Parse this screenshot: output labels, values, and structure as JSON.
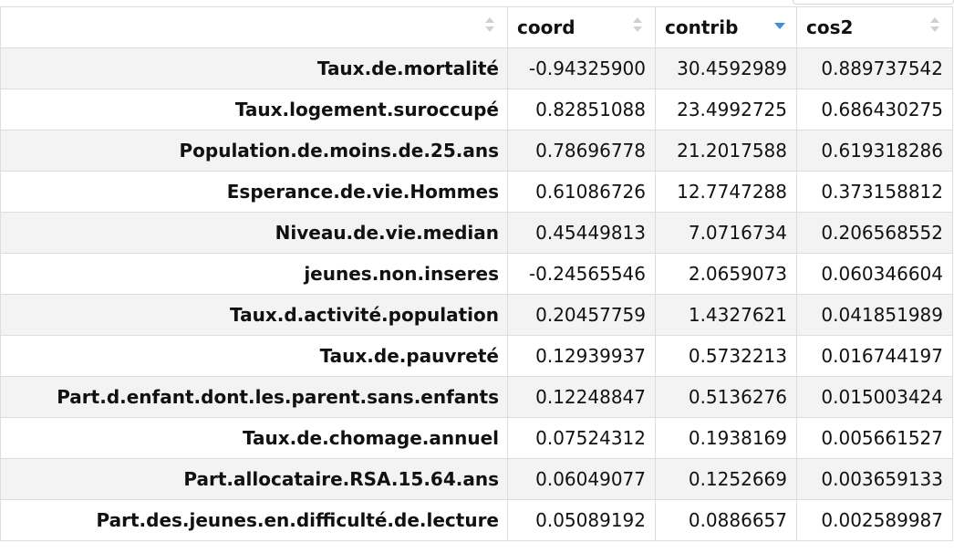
{
  "table": {
    "columns": [
      {
        "label": "",
        "sort": "none"
      },
      {
        "label": "coord",
        "sort": "none"
      },
      {
        "label": "contrib",
        "sort": "descending"
      },
      {
        "label": "cos2",
        "sort": "none"
      }
    ],
    "rows": [
      {
        "name": "Taux.de.mortalité",
        "coord": "-0.94325900",
        "contrib": "30.4592989",
        "cos2": "0.889737542"
      },
      {
        "name": "Taux.logement.suroccupé",
        "coord": "0.82851088",
        "contrib": "23.4992725",
        "cos2": "0.686430275"
      },
      {
        "name": "Population.de.moins.de.25.ans",
        "coord": "0.78696778",
        "contrib": "21.2017588",
        "cos2": "0.619318286"
      },
      {
        "name": "Esperance.de.vie.Hommes",
        "coord": "0.61086726",
        "contrib": "12.7747288",
        "cos2": "0.373158812"
      },
      {
        "name": "Niveau.de.vie.median",
        "coord": "0.45449813",
        "contrib": "7.0716734",
        "cos2": "0.206568552"
      },
      {
        "name": "jeunes.non.inseres",
        "coord": "-0.24565546",
        "contrib": "2.0659073",
        "cos2": "0.060346604"
      },
      {
        "name": "Taux.d.activité.population",
        "coord": "0.20457759",
        "contrib": "1.4327621",
        "cos2": "0.041851989"
      },
      {
        "name": "Taux.de.pauvreté",
        "coord": "0.12939937",
        "contrib": "0.5732213",
        "cos2": "0.016744197"
      },
      {
        "name": "Part.d.enfant.dont.les.parent.sans.enfants",
        "coord": "0.12248847",
        "contrib": "0.5136276",
        "cos2": "0.015003424"
      },
      {
        "name": "Taux.de.chomage.annuel",
        "coord": "0.07524312",
        "contrib": "0.1938169",
        "cos2": "0.005661527"
      },
      {
        "name": "Part.allocataire.RSA.15.64.ans",
        "coord": "0.06049077",
        "contrib": "0.1252669",
        "cos2": "0.003659133"
      },
      {
        "name": "Part.des.jeunes.en.difficulté.de.lecture",
        "coord": "0.05089192",
        "contrib": "0.0886657",
        "cos2": "0.002589987"
      }
    ]
  },
  "colors": {
    "sort_active": "#3f8fe0",
    "sort_inactive": "#d0d0d0",
    "stripe": "#f3f3f3",
    "border": "#dddddd"
  }
}
